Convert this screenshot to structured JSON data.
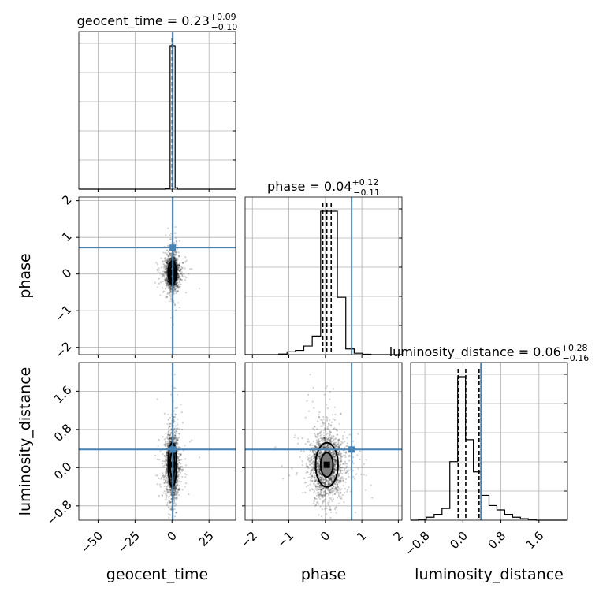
{
  "chart_data": {
    "type": "corner",
    "parameters": [
      "geocent_time",
      "phase",
      "luminosity_distance"
    ],
    "truth_color": "#4682b4",
    "ranges": {
      "geocent_time": [
        -63,
        43
      ],
      "phase": [
        -2.2,
        2.1
      ],
      "luminosity_distance": [
        -1.1,
        2.2
      ]
    },
    "ticks": {
      "geocent_time": {
        "values": [
          -50,
          -25,
          0,
          25
        ],
        "labels": [
          "−50",
          "−25",
          "0",
          "25"
        ]
      },
      "phase": {
        "values": [
          -2,
          -1,
          0,
          1,
          2
        ],
        "labels": [
          "−2",
          "−1",
          "0",
          "1",
          "2"
        ]
      },
      "luminosity_distance": {
        "values": [
          -0.8,
          0.0,
          0.8,
          1.6
        ],
        "labels": [
          "−0.8",
          "0.0",
          "0.8",
          "1.6"
        ]
      }
    },
    "truths": {
      "geocent_time": 0.5,
      "phase": 0.72,
      "luminosity_distance": 0.38
    },
    "titles": [
      {
        "param": "geocent_time",
        "label": "geocent_time = 0.23",
        "plus": "+0.09",
        "minus": "−0.10"
      },
      {
        "param": "phase",
        "label": "phase = 0.04",
        "plus": "+0.12",
        "minus": "−0.11"
      },
      {
        "param": "luminosity_distance",
        "label": "luminosity_distance = 0.06",
        "plus": "+0.28",
        "minus": "−0.16"
      }
    ],
    "quantiles": {
      "geocent_time": [
        0.13,
        0.23,
        0.32
      ],
      "phase": [
        -0.07,
        0.04,
        0.16
      ],
      "luminosity_distance": [
        -0.1,
        0.06,
        0.34
      ]
    },
    "histograms": {
      "geocent_time": {
        "edges": [
          -63,
          -57.7,
          -52.4,
          -47.1,
          -41.8,
          -36.5,
          -31.2,
          -25.9,
          -20.6,
          -15.3,
          -10,
          -4.7,
          -3,
          -1.3,
          0.4,
          2.1,
          3.8,
          43
        ],
        "counts": [
          0,
          0,
          0,
          0,
          0,
          0,
          0,
          0,
          0,
          0,
          0,
          0.004,
          0.005,
          1.0,
          1.0,
          0.01,
          0
        ]
      },
      "phase": {
        "edges": [
          -2.2,
          -1.97,
          -1.74,
          -1.51,
          -1.28,
          -1.05,
          -0.82,
          -0.59,
          -0.36,
          -0.13,
          0.1,
          0.33,
          0.56,
          0.79,
          1.02,
          1.25,
          1.48,
          1.71,
          1.94,
          2.1
        ],
        "counts": [
          0,
          0,
          0,
          0,
          0.004,
          0.02,
          0.03,
          0.06,
          0.13,
          1.0,
          1.0,
          0.4,
          0.04,
          0.01,
          0.003,
          0,
          0,
          0,
          0
        ]
      },
      "luminosity_distance": {
        "edges": [
          -1.1,
          -0.935,
          -0.77,
          -0.605,
          -0.44,
          -0.275,
          -0.11,
          0.055,
          0.22,
          0.385,
          0.55,
          0.715,
          0.88,
          1.045,
          1.21,
          1.375,
          1.54,
          1.705,
          1.87,
          2.035,
          2.2
        ],
        "counts": [
          0,
          0.005,
          0.02,
          0.04,
          0.08,
          0.4,
          0.98,
          0.55,
          0.33,
          0.17,
          0.1,
          0.07,
          0.04,
          0.02,
          0.01,
          0.005,
          0,
          0,
          0,
          0
        ]
      }
    },
    "scatter": {
      "n": 1800,
      "std": {
        "geocent_time": 2.0,
        "phase": 0.22,
        "luminosity_distance": 0.33
      }
    },
    "xlabels": [
      "geocent_time",
      "phase",
      "luminosity_distance"
    ],
    "ylabels": [
      "phase",
      "luminosity_distance"
    ]
  }
}
